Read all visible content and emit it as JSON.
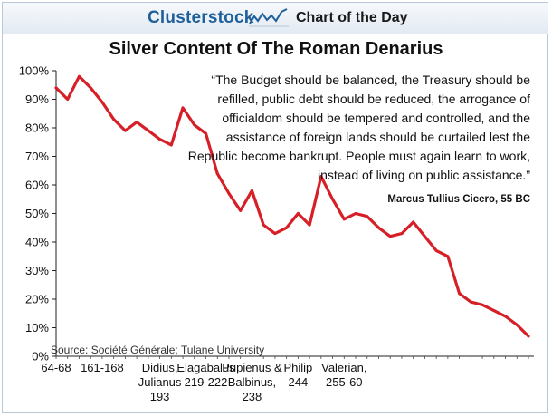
{
  "header": {
    "brand": "Clusterstock",
    "logo_icon": "line-chart-icon",
    "tagline": "Chart of the Day"
  },
  "chart_data": {
    "type": "line",
    "title": "Silver Content Of The Roman Denarius",
    "ylabel": "",
    "xlabel": "",
    "ylim": [
      0,
      100
    ],
    "y_ticks": [
      "0%",
      "10%",
      "20%",
      "30%",
      "40%",
      "50%",
      "60%",
      "70%",
      "80%",
      "90%",
      "100%"
    ],
    "x_tick_labels": [
      [
        "64-68"
      ],
      [
        "161-168"
      ],
      [
        "Didius,",
        "Julianus",
        "193"
      ],
      [
        "Elagabalus",
        "219-222"
      ],
      [
        "Pupienus &",
        "Balbinus,",
        "238"
      ],
      [
        "Philip",
        "244"
      ],
      [
        "Valerian,",
        "255-60"
      ]
    ],
    "x_tick_positions": [
      0,
      4,
      9,
      13,
      17,
      21,
      25
    ],
    "series": [
      {
        "color": "#d61f26",
        "values": [
          94,
          90,
          98,
          94,
          89,
          83,
          79,
          82,
          79,
          76,
          74,
          87,
          81,
          78,
          64,
          57,
          51,
          58,
          46,
          43,
          45,
          50,
          46,
          63,
          55,
          48,
          50,
          49,
          45,
          42,
          43,
          47,
          42,
          37,
          35,
          22,
          19,
          18,
          16,
          14,
          11,
          7
        ]
      }
    ],
    "grid": false,
    "legend": "none",
    "annotation": {
      "quote": "“The Budget should be balanced, the Treasury should be refilled, public debt should be reduced, the arrogance of officialdom should be tempered and controlled, and the assistance of foreign lands should be curtailed lest the Republic become bankrupt. People must again learn to work, instead of living on public assistance.”",
      "attribution": "Marcus Tullius Cicero, 55 BC"
    },
    "source": "Source: Société Générale; Tulane University"
  }
}
